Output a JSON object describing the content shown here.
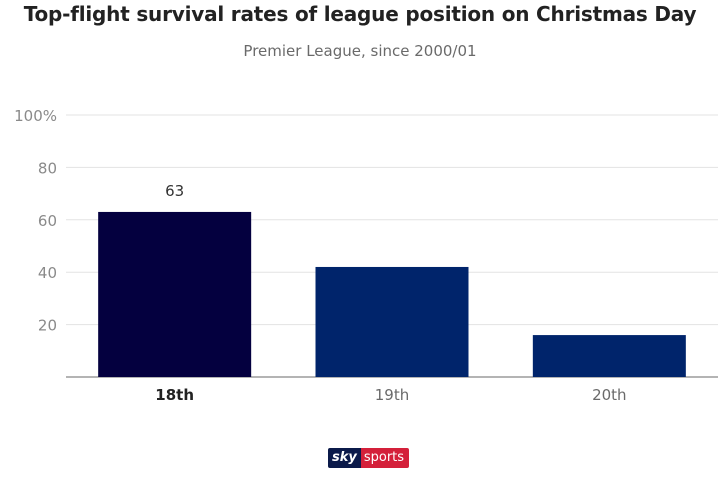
{
  "chart_data": {
    "type": "bar",
    "title": "Top-flight survival rates of league position on Christmas Day",
    "subtitle": "Premier League, since 2000/01",
    "categories": [
      "18th",
      "19th",
      "20th"
    ],
    "values": [
      63,
      42,
      16
    ],
    "data_labels": [
      "63",
      "",
      ""
    ],
    "highlight_category": "18th",
    "yticks": [
      20,
      40,
      60,
      80,
      100
    ],
    "ytick_labels": [
      "20",
      "40",
      "60",
      "80",
      "100%"
    ],
    "ylim": [
      0,
      100
    ],
    "xlabel": "",
    "ylabel": "",
    "grid": true,
    "colors": {
      "highlight": "#04003f",
      "bar": "#00246b",
      "grid": "#e3e3e3",
      "axis": "#888888",
      "tick_text": "#8a8a8a",
      "category_text": "#6a6a6a",
      "category_highlight_text": "#222222",
      "data_label_text": "#333333"
    }
  },
  "branding": {
    "sky": "sky",
    "sports": "sports"
  }
}
